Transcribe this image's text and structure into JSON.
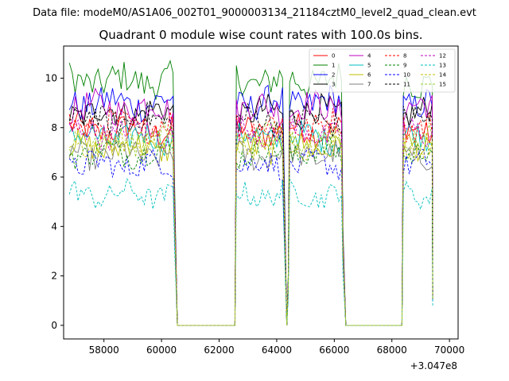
{
  "figure": {
    "suptitle": "Data file: modeM0/AS1A06_002T01_9000003134_21184cztM0_level2_quad_clean.evt",
    "title": "Quadrant 0 module wise count rates with 100.0s bins.",
    "x_offset_label": "+3.047e8"
  },
  "chart_data": {
    "type": "line",
    "title": "Quadrant 0 module wise count rates with 100.0s bins.",
    "xlabel": "",
    "ylabel": "",
    "x_offset": 304700000,
    "xlim": [
      56600,
      70300
    ],
    "ylim": [
      -0.55,
      11.3
    ],
    "xticks": [
      58000,
      60000,
      62000,
      64000,
      66000,
      68000,
      70000
    ],
    "xtick_labels": [
      "58000",
      "60000",
      "62000",
      "64000",
      "66000",
      "68000",
      "70000"
    ],
    "yticks": [
      0,
      2,
      4,
      6,
      8,
      10
    ],
    "ytick_labels": [
      "0",
      "2",
      "4",
      "6",
      "8",
      "10"
    ],
    "legend_position": "top-right",
    "bin_seconds": 100,
    "segments": [
      {
        "start": 56800,
        "end": 60400
      },
      {
        "start": 62600,
        "end": 64250
      },
      {
        "start": 64450,
        "end": 66250
      },
      {
        "start": 68400,
        "end": 69400
      }
    ],
    "transition_points": [
      [
        60450,
        5.0
      ],
      [
        60550,
        0
      ],
      [
        62550,
        0
      ],
      [
        64300,
        3.0
      ],
      [
        64350,
        0
      ],
      [
        64400,
        1.2
      ],
      [
        66300,
        3.0
      ],
      [
        66400,
        0
      ],
      [
        68350,
        0
      ]
    ],
    "series": [
      {
        "name": "0",
        "color": "#ff0000",
        "dash": "solid",
        "level": 7.9
      },
      {
        "name": "1",
        "color": "#008000",
        "dash": "solid",
        "level": 9.9
      },
      {
        "name": "2",
        "color": "#0000ff",
        "dash": "solid",
        "level": 9.0
      },
      {
        "name": "3",
        "color": "#000000",
        "dash": "solid",
        "level": 8.6
      },
      {
        "name": "4",
        "color": "#bf00bf",
        "dash": "solid",
        "level": 8.8
      },
      {
        "name": "5",
        "color": "#00bfbf",
        "dash": "solid",
        "level": 7.6
      },
      {
        "name": "6",
        "color": "#bfbf00",
        "dash": "solid",
        "level": 7.2
      },
      {
        "name": "7",
        "color": "#808080",
        "dash": "solid",
        "level": 6.9
      },
      {
        "name": "8",
        "color": "#ff0000",
        "dash": "dashed",
        "level": 8.1
      },
      {
        "name": "9",
        "color": "#008000",
        "dash": "dashed",
        "level": 7.0
      },
      {
        "name": "10",
        "color": "#0000ff",
        "dash": "dashed",
        "level": 6.5
      },
      {
        "name": "11",
        "color": "#000000",
        "dash": "dashed",
        "level": 8.3
      },
      {
        "name": "12",
        "color": "#bf00bf",
        "dash": "dashed",
        "level": 7.8
      },
      {
        "name": "13",
        "color": "#00bfbf",
        "dash": "dashed",
        "level": 5.3
      },
      {
        "name": "14",
        "color": "#bfbf00",
        "dash": "dashed",
        "level": 7.4
      },
      {
        "name": "15",
        "color": "#9acd32",
        "dash": "dashed",
        "level": 7.5
      }
    ]
  }
}
